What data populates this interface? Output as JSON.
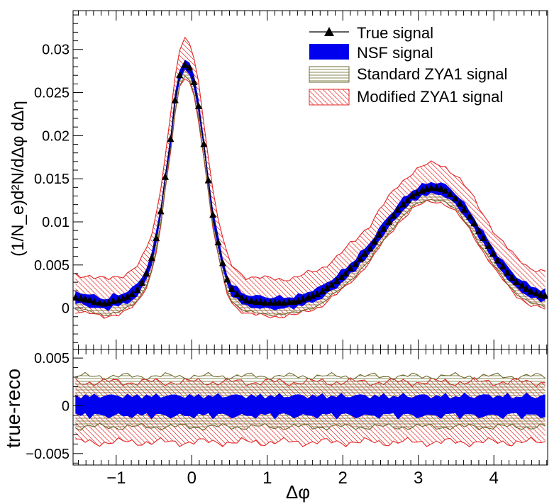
{
  "chart_data": [
    {
      "type": "line",
      "panel": "top",
      "xlabel": "Δφ",
      "ylabel": "(1/N_e)d²N/dΔφ dΔη",
      "xlim": [
        -1.571,
        4.712
      ],
      "ylim": [
        -0.0048,
        0.0345
      ],
      "x_ticks": [
        -1,
        0,
        1,
        2,
        3,
        4
      ],
      "y_ticks": [
        0,
        0.005,
        0.01,
        0.015,
        0.02,
        0.025,
        0.03
      ],
      "y_tick_labels": [
        "0",
        "0.005",
        "0.01",
        "0.015",
        "0.02",
        "0.025",
        "0.03"
      ],
      "legend_position": "top-right",
      "legend": [
        {
          "key": "true",
          "label": "True signal"
        },
        {
          "key": "nsf",
          "label": "NSF signal"
        },
        {
          "key": "szya",
          "label": "Standard ZYA1 signal"
        },
        {
          "key": "mzya",
          "label": "Modified ZYA1 signal"
        }
      ],
      "true_signal": {
        "x": [
          -1.54,
          -1.47,
          -1.41,
          -1.35,
          -1.29,
          -1.22,
          -1.16,
          -1.1,
          -1.04,
          -0.97,
          -0.91,
          -0.85,
          -0.79,
          -0.72,
          -0.66,
          -0.6,
          -0.53,
          -0.47,
          -0.41,
          -0.35,
          -0.28,
          -0.22,
          -0.16,
          -0.09,
          -0.03,
          0.03,
          0.09,
          0.16,
          0.22,
          0.28,
          0.35,
          0.41,
          0.47,
          0.53,
          0.6,
          0.66,
          0.72,
          0.79,
          0.85,
          0.91,
          0.97,
          1.04,
          1.1,
          1.16,
          1.22,
          1.29,
          1.35,
          1.41,
          1.47,
          1.54,
          1.6,
          1.66,
          1.73,
          1.79,
          1.85,
          1.92,
          1.98,
          2.04,
          2.1,
          2.17,
          2.23,
          2.29,
          2.36,
          2.42,
          2.48,
          2.54,
          2.61,
          2.67,
          2.73,
          2.8,
          2.86,
          2.92,
          2.98,
          3.05,
          3.11,
          3.17,
          3.24,
          3.3,
          3.36,
          3.42,
          3.49,
          3.55,
          3.61,
          3.68,
          3.74,
          3.8,
          3.86,
          3.93,
          3.99,
          4.05,
          4.12,
          4.18,
          4.24,
          4.3,
          4.37,
          4.43,
          4.49,
          4.56,
          4.62,
          4.68
        ],
        "y": [
          0.0012,
          0.0011,
          0.001,
          0.0009,
          0.0007,
          0.0006,
          0.0005,
          0.0006,
          0.0008,
          0.0009,
          0.0011,
          0.0013,
          0.0016,
          0.0021,
          0.0029,
          0.004,
          0.0058,
          0.0081,
          0.0112,
          0.0152,
          0.0196,
          0.0241,
          0.027,
          0.0282,
          0.0279,
          0.0262,
          0.0234,
          0.019,
          0.0148,
          0.0108,
          0.0076,
          0.0052,
          0.0033,
          0.0022,
          0.0016,
          0.0012,
          0.0009,
          0.0008,
          0.0007,
          0.0007,
          0.0006,
          0.0006,
          0.0006,
          0.0006,
          0.0006,
          0.0007,
          0.0007,
          0.0008,
          0.001,
          0.0012,
          0.0014,
          0.0016,
          0.0019,
          0.0023,
          0.0027,
          0.0031,
          0.0036,
          0.004,
          0.0046,
          0.0051,
          0.0057,
          0.0063,
          0.0069,
          0.0077,
          0.0085,
          0.0092,
          0.01,
          0.0107,
          0.0114,
          0.012,
          0.0125,
          0.013,
          0.0133,
          0.0136,
          0.0138,
          0.0139,
          0.0139,
          0.0138,
          0.0136,
          0.0132,
          0.0127,
          0.0121,
          0.0114,
          0.0106,
          0.0098,
          0.0089,
          0.0081,
          0.0072,
          0.0063,
          0.0055,
          0.0048,
          0.0041,
          0.0035,
          0.003,
          0.0026,
          0.0022,
          0.0019,
          0.0017,
          0.0015,
          0.0014
        ]
      },
      "nsf_band_halfwidth": 0.0008,
      "standard_zya1_offset": -0.0007,
      "standard_zya1_halfwidth": 0.0012,
      "modified_zya1_halfwidth": 0.0028
    },
    {
      "type": "line",
      "panel": "bottom",
      "xlabel": "Δφ",
      "ylabel": "true-reco",
      "xlim": [
        -1.571,
        4.712
      ],
      "ylim": [
        -0.0062,
        0.0059
      ],
      "x_ticks": [
        -1,
        0,
        1,
        2,
        3,
        4
      ],
      "x_tick_labels": [
        "−1",
        "0",
        "1",
        "2",
        "3",
        "4"
      ],
      "y_ticks": [
        -0.005,
        0,
        0.005
      ],
      "y_tick_labels": [
        "−0.005",
        "0",
        "0.005"
      ],
      "nsf_center": 0.0,
      "nsf_halfwidth": 0.0011,
      "standard_zya1_range": [
        -0.0022,
        0.0031
      ],
      "modified_zya1_range": [
        -0.0038,
        0.0025
      ]
    }
  ]
}
